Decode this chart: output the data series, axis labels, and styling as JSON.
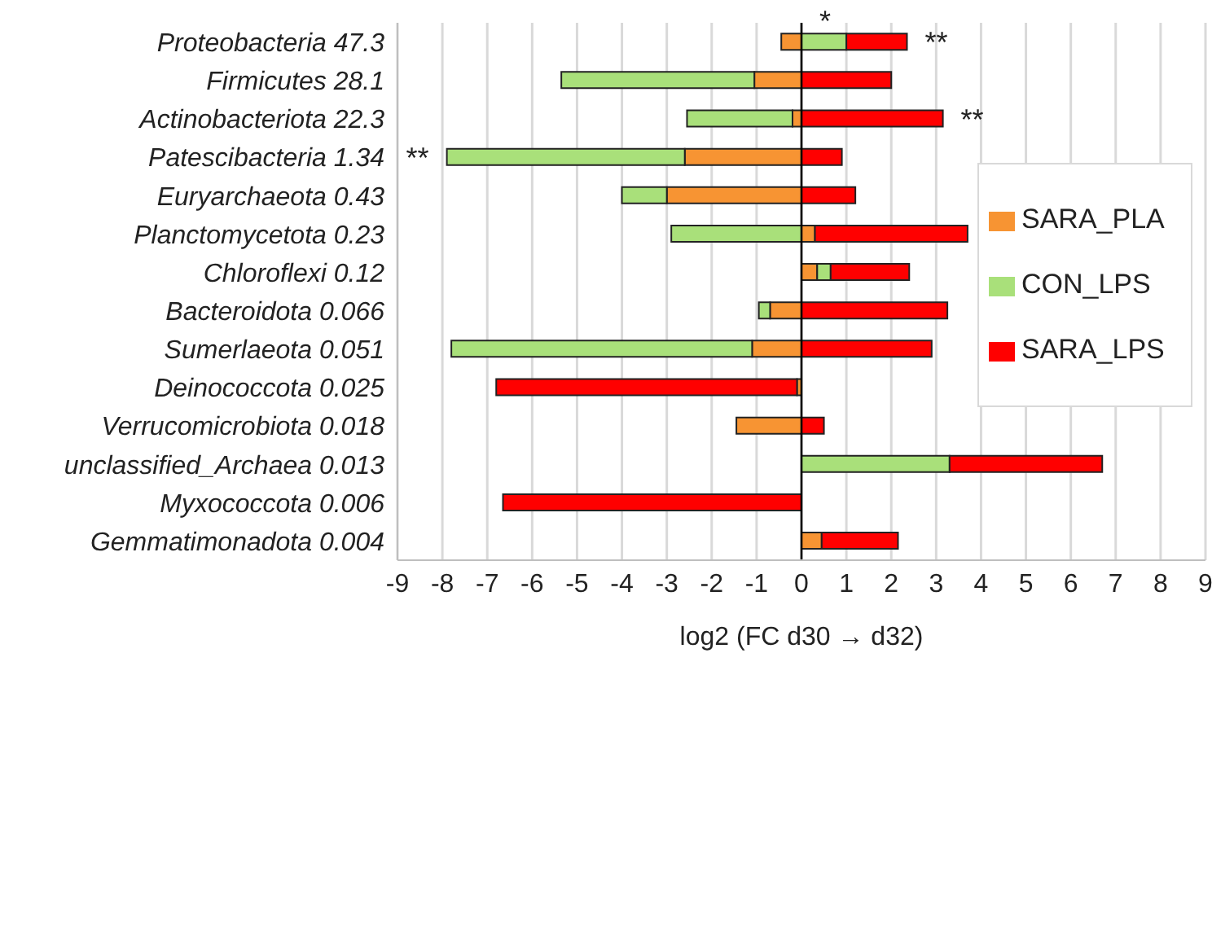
{
  "chart_data": {
    "type": "bar",
    "orientation": "horizontal",
    "stacked": true,
    "categories": [
      "Proteobacteria 47.3",
      "Firmicutes 28.1",
      "Actinobacteriota 22.3",
      "Patescibacteria 1.34",
      "Euryarchaeota 0.43",
      "Planctomycetota 0.23",
      "Chloroflexi 0.12",
      "Bacteroidota 0.066",
      "Sumerlaeota 0.051",
      "Deinococcota 0.025",
      "Verrucomicrobiota 0.018",
      "unclassified_Archaea 0.013",
      "Myxococcota 0.006",
      "Gemmatimonadota 0.004"
    ],
    "series": [
      {
        "name": "SARA_PLA",
        "color": "#f79433",
        "values": [
          -0.45,
          -1.05,
          -0.2,
          -2.6,
          -3.0,
          0.3,
          0.35,
          -0.7,
          -1.1,
          -0.1,
          -1.45,
          null,
          null,
          0.45
        ]
      },
      {
        "name": "CON_LPS",
        "color": "#a9e07a",
        "values": [
          1.0,
          -4.3,
          -2.35,
          -5.3,
          -1.0,
          -2.9,
          0.3,
          -0.25,
          -6.7,
          null,
          null,
          3.3,
          null,
          null
        ]
      },
      {
        "name": "SARA_LPS",
        "color": "#ff0000",
        "values": [
          1.35,
          2.0,
          3.15,
          0.9,
          1.2,
          3.4,
          1.75,
          3.25,
          2.9,
          -6.7,
          0.5,
          3.4,
          -6.65,
          1.7
        ]
      }
    ],
    "xlim": [
      -9,
      9
    ],
    "xticks": [
      -9,
      -8,
      -7,
      -6,
      -5,
      -4,
      -3,
      -2,
      -1,
      0,
      1,
      2,
      3,
      4,
      5,
      6,
      7,
      8,
      9
    ],
    "xlabel": "log2 (FC d30 → d32)",
    "grid": "x",
    "legend": "right",
    "annotations": [
      {
        "text": "*",
        "x": 1.0,
        "y": "Proteobacteria 47.3"
      },
      {
        "text": "**",
        "x": 2.35,
        "y": "Proteobacteria 47.3"
      },
      {
        "text": "**",
        "x": 3.15,
        "y": "Actinobacteriota 22.3"
      },
      {
        "text": "**",
        "x": -7.9,
        "y": "Patescibacteria 1.34"
      }
    ]
  }
}
